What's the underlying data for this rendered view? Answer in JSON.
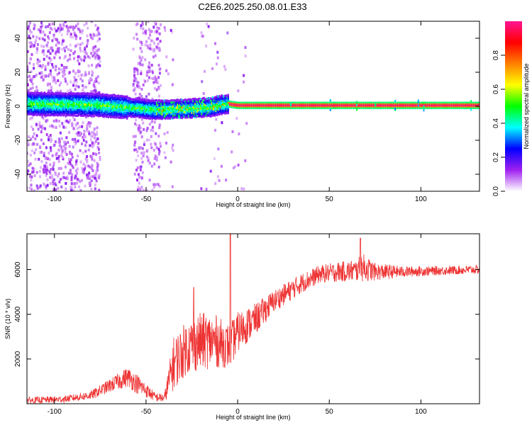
{
  "chart_data": [
    {
      "type": "heatmap",
      "title": "C2E6.2025.250.08.01.E33",
      "xlabel": "Height of straight line (km)",
      "ylabel": "Frequency (Hz)",
      "xlim": [
        -115,
        132
      ],
      "ylim": [
        -50,
        50
      ],
      "xticks": [
        -100,
        -50,
        0,
        50,
        100
      ],
      "yticks": [
        -40,
        -20,
        0,
        20,
        40
      ],
      "colorbar": {
        "label": "Normalized spectral amplitude",
        "range": [
          0,
          1
        ],
        "ticks": [
          0.0,
          0.2,
          0.4,
          0.6,
          0.8
        ],
        "tick_labels": [
          "0.0",
          "0.2",
          "0.4",
          "0.6",
          "0.8"
        ],
        "colormap": [
          "#ffffff",
          "#a020f0",
          "#0000ff",
          "#00ffff",
          "#00ff00",
          "#ffff00",
          "#ff8000",
          "#ff0000",
          "#ff1493"
        ]
      },
      "ridge": {
        "description_points": [
          [
            -115,
            1.5
          ],
          [
            -80,
            1.0
          ],
          [
            -60,
            -0.5
          ],
          [
            -45,
            -2.0
          ],
          [
            -30,
            -1.5
          ],
          [
            -15,
            -0.5
          ],
          [
            -6,
            1.5
          ],
          [
            0,
            0.5
          ],
          [
            132,
            0.5
          ]
        ]
      }
    },
    {
      "type": "line",
      "xlabel": "Height of straight line (km)",
      "ylabel": "SNR (10 * v/v)",
      "xlim": [
        -115,
        132
      ],
      "ylim": [
        0,
        7600
      ],
      "xticks": [
        -100,
        -50,
        0,
        50,
        100
      ],
      "yticks": [
        2000,
        4000,
        6000
      ],
      "series": [
        {
          "name": "SNR",
          "color": "#ee3333",
          "envelope_x": [
            -115,
            -95,
            -80,
            -70,
            -60,
            -55,
            -45,
            -40,
            -35,
            -28,
            -20,
            -12,
            -6,
            -4,
            0,
            10,
            20,
            35,
            45,
            55,
            65,
            68,
            75,
            90,
            110,
            132
          ],
          "envelope_mean": [
            150,
            200,
            380,
            800,
            1200,
            900,
            300,
            250,
            1800,
            2500,
            2800,
            2800,
            2600,
            2600,
            3200,
            3800,
            4600,
            5400,
            5800,
            5900,
            5950,
            6100,
            5900,
            5900,
            5950,
            6000
          ],
          "envelope_noise": [
            150,
            150,
            200,
            300,
            450,
            450,
            200,
            200,
            1200,
            1200,
            1300,
            1200,
            1000,
            1000,
            900,
            700,
            500,
            450,
            400,
            450,
            500,
            650,
            400,
            250,
            200,
            200
          ],
          "peaks": [
            [
              -4,
              7600
            ],
            [
              67,
              7400
            ],
            [
              -24,
              5200
            ]
          ]
        }
      ]
    }
  ]
}
